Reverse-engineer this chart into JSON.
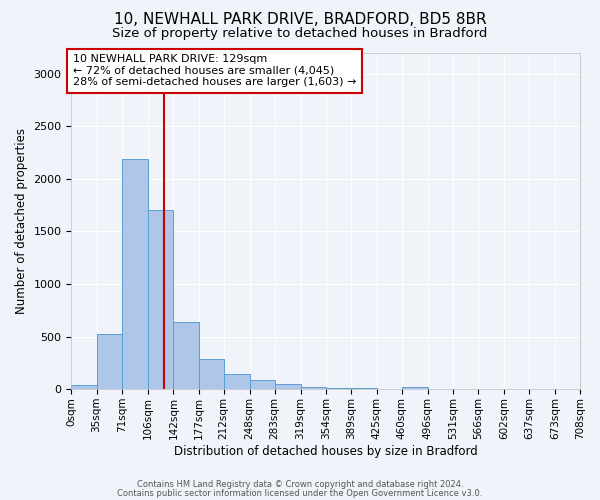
{
  "title1": "10, NEWHALL PARK DRIVE, BRADFORD, BD5 8BR",
  "title2": "Size of property relative to detached houses in Bradford",
  "xlabel": "Distribution of detached houses by size in Bradford",
  "ylabel": "Number of detached properties",
  "bin_edges": [
    0,
    35,
    71,
    106,
    142,
    177,
    212,
    248,
    283,
    319,
    354,
    389,
    425,
    460,
    496,
    531,
    566,
    602,
    637,
    673,
    708
  ],
  "bar_heights": [
    35,
    520,
    2190,
    1700,
    640,
    290,
    145,
    85,
    45,
    20,
    15,
    10,
    5,
    20,
    5,
    5,
    5,
    5,
    5,
    5
  ],
  "bar_color": "#aec6e8",
  "bar_edge_color": "#5a9fd4",
  "property_size": 129,
  "red_line_color": "#cc0000",
  "annotation_text": "10 NEWHALL PARK DRIVE: 129sqm\n← 72% of detached houses are smaller (4,045)\n28% of semi-detached houses are larger (1,603) →",
  "annotation_box_color": "#ffffff",
  "annotation_border_color": "#cc0000",
  "ylim": [
    0,
    3200
  ],
  "background_color": "#f0f4fa",
  "grid_color": "#ffffff",
  "footer_line1": "Contains HM Land Registry data © Crown copyright and database right 2024.",
  "footer_line2": "Contains public sector information licensed under the Open Government Licence v3.0.",
  "title1_fontsize": 11,
  "title2_fontsize": 9.5,
  "tick_label_fontsize": 7.5,
  "axis_label_fontsize": 8.5
}
